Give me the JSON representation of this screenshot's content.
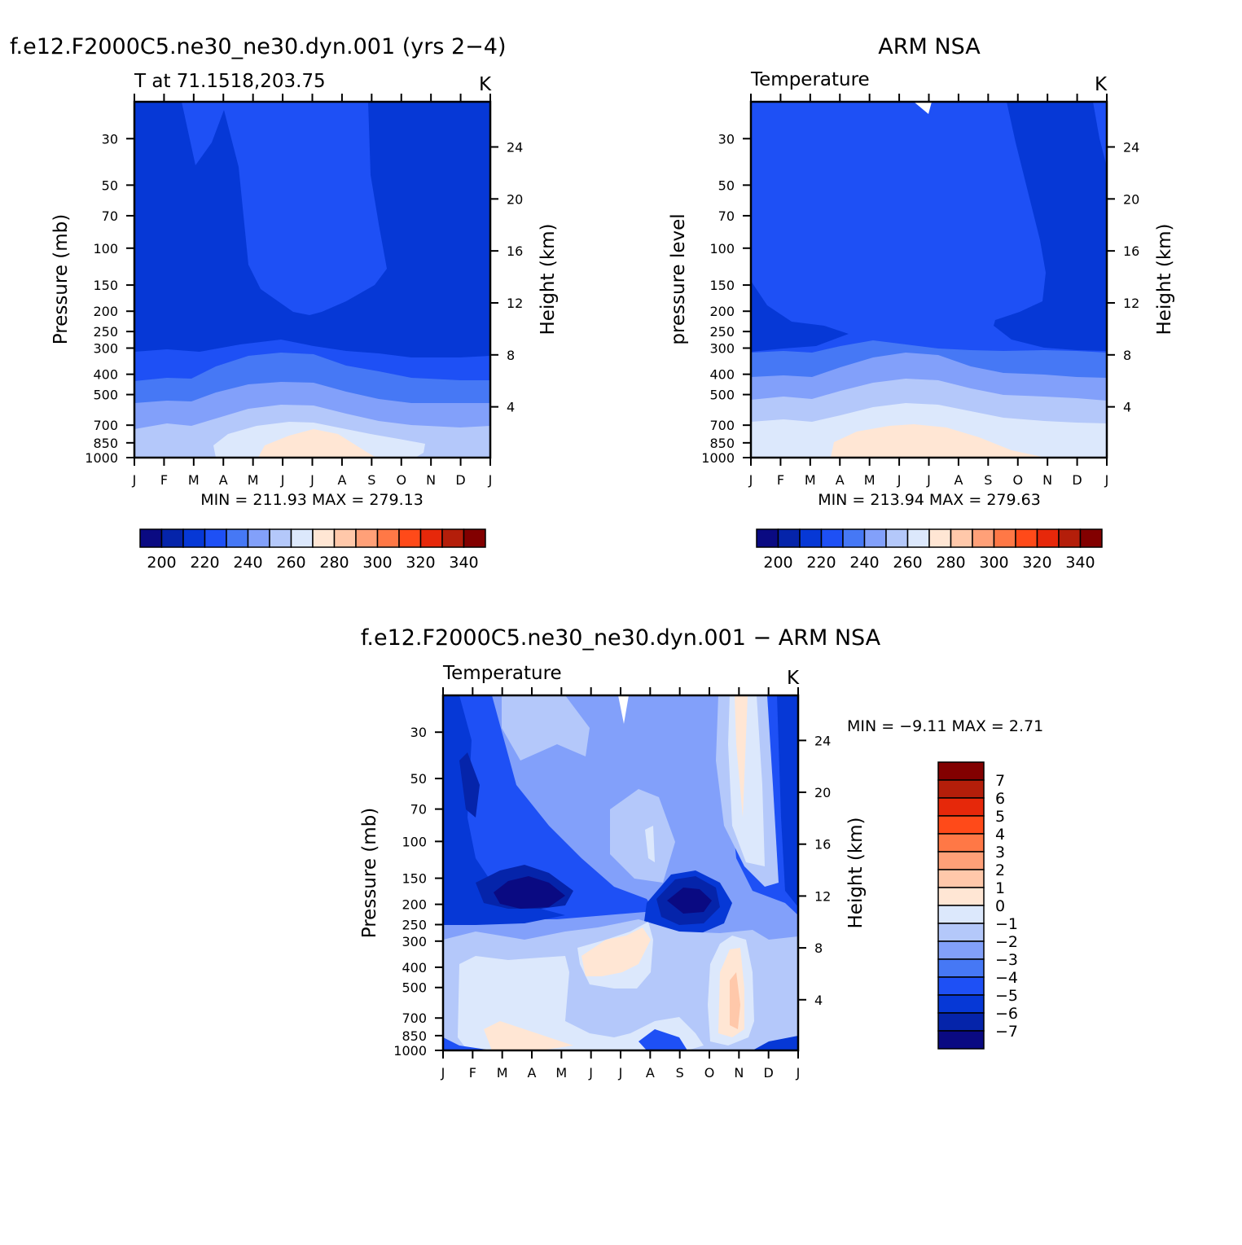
{
  "chart_data": [
    {
      "type": "heatmap",
      "panel": "model",
      "title": "f.e12.F2000C5.ne30_ne30.dyn.001 (yrs 2−4)",
      "subtitle_left": "T at 71.1518,203.75",
      "units": "K",
      "ylabel": "Pressure (mb)",
      "ylabel_right": "Height (km)",
      "x": [
        "J",
        "F",
        "M",
        "A",
        "M",
        "J",
        "J",
        "A",
        "S",
        "O",
        "N",
        "D",
        "J"
      ],
      "y_ticks": [
        30,
        50,
        70,
        100,
        150,
        200,
        250,
        300,
        400,
        500,
        700,
        850,
        1000
      ],
      "y_right_ticks": [
        4,
        8,
        12,
        16,
        20,
        24
      ],
      "ylim": [
        1000,
        20
      ],
      "stats_text": "MIN = 211.93 MAX = 279.13",
      "contour_levels": [
        205,
        210,
        215,
        220,
        225,
        230,
        235,
        240,
        245,
        250,
        255,
        260,
        265,
        270,
        275
      ],
      "temperature_K_by_month": {
        "30": [
          212,
          213,
          216,
          217,
          218,
          218,
          218,
          218,
          216,
          213,
          212,
          212,
          212
        ],
        "100": [
          212,
          213,
          214,
          216,
          217,
          218,
          218,
          218,
          216,
          213,
          212,
          212,
          212
        ],
        "200": [
          212,
          213,
          214,
          216,
          217,
          218,
          218,
          218,
          216,
          213,
          212,
          212,
          212
        ],
        "300": [
          217,
          217,
          217,
          218,
          220,
          221,
          222,
          221,
          219,
          218,
          217,
          217,
          217
        ],
        "400": [
          224,
          224,
          224,
          227,
          230,
          232,
          233,
          232,
          229,
          226,
          224,
          224,
          224
        ],
        "500": [
          231,
          231,
          231,
          235,
          238,
          241,
          242,
          241,
          237,
          233,
          231,
          231,
          231
        ],
        "700": [
          242,
          243,
          242,
          247,
          252,
          256,
          258,
          256,
          251,
          246,
          243,
          242,
          242
        ],
        "850": [
          249,
          250,
          249,
          253,
          260,
          266,
          268,
          266,
          260,
          254,
          250,
          249,
          249
        ],
        "1000": [
          251,
          252,
          252,
          256,
          263,
          270,
          276,
          272,
          264,
          257,
          252,
          251,
          251
        ]
      }
    },
    {
      "type": "heatmap",
      "panel": "observations",
      "title": "ARM NSA",
      "subtitle_left": "Temperature",
      "units": "K",
      "ylabel": "pressure level",
      "ylabel_right": "Height (km)",
      "x": [
        "J",
        "F",
        "M",
        "A",
        "M",
        "J",
        "J",
        "A",
        "S",
        "O",
        "N",
        "D",
        "J"
      ],
      "y_ticks": [
        30,
        50,
        70,
        100,
        150,
        200,
        250,
        300,
        400,
        500,
        700,
        850,
        1000
      ],
      "y_right_ticks": [
        4,
        8,
        12,
        16,
        20,
        24
      ],
      "ylim": [
        1000,
        20
      ],
      "stats_text": "MIN = 213.94 MAX = 279.63",
      "contour_levels": [
        205,
        210,
        215,
        220,
        225,
        230,
        235,
        240,
        245,
        250,
        255,
        260,
        265,
        270,
        275
      ]
    },
    {
      "type": "heatmap",
      "panel": "difference",
      "title": "f.e12.F2000C5.ne30_ne30.dyn.001 − ARM NSA",
      "subtitle_left": "Temperature",
      "units": "K",
      "ylabel": "Pressure (mb)",
      "ylabel_right": "Height (km)",
      "x": [
        "J",
        "F",
        "M",
        "A",
        "M",
        "J",
        "J",
        "A",
        "S",
        "O",
        "N",
        "D",
        "J"
      ],
      "y_ticks": [
        30,
        50,
        70,
        100,
        150,
        200,
        250,
        300,
        400,
        500,
        700,
        850,
        1000
      ],
      "y_right_ticks": [
        4,
        8,
        12,
        16,
        20,
        24
      ],
      "ylim": [
        1000,
        20
      ],
      "stats_text": "MIN =   −9.11  MAX =    2.71",
      "contour_levels": [
        -7,
        -6,
        -5,
        -4,
        -3,
        -2,
        -1,
        0,
        1,
        2,
        3,
        4,
        5,
        6,
        7
      ]
    }
  ],
  "colorbar_temperature": {
    "labels": [
      "200",
      "220",
      "240",
      "260",
      "280",
      "300",
      "320",
      "340"
    ],
    "colors": [
      "#0a0a82",
      "#0524aa",
      "#0638d6",
      "#1e50f5",
      "#4678f5",
      "#82a0fa",
      "#b4c8fa",
      "#dce8fc",
      "#ffe6d4",
      "#ffc8aa",
      "#ffa078",
      "#ff7846",
      "#ff4a19",
      "#e6280a",
      "#b41e0a",
      "#820000"
    ]
  },
  "colorbar_difference": {
    "labels": [
      "7",
      "6",
      "5",
      "4",
      "3",
      "2",
      "1",
      "0",
      "−1",
      "−2",
      "−3",
      "−4",
      "−5",
      "−6",
      "−7"
    ],
    "colors": [
      "#820000",
      "#b41e0a",
      "#e6280a",
      "#ff4a19",
      "#ff7846",
      "#ffa078",
      "#ffc8aa",
      "#ffe6d4",
      "#dce8fc",
      "#b4c8fa",
      "#82a0fa",
      "#4678f5",
      "#1e50f5",
      "#0638d6",
      "#0524aa",
      "#0a0a82"
    ]
  }
}
